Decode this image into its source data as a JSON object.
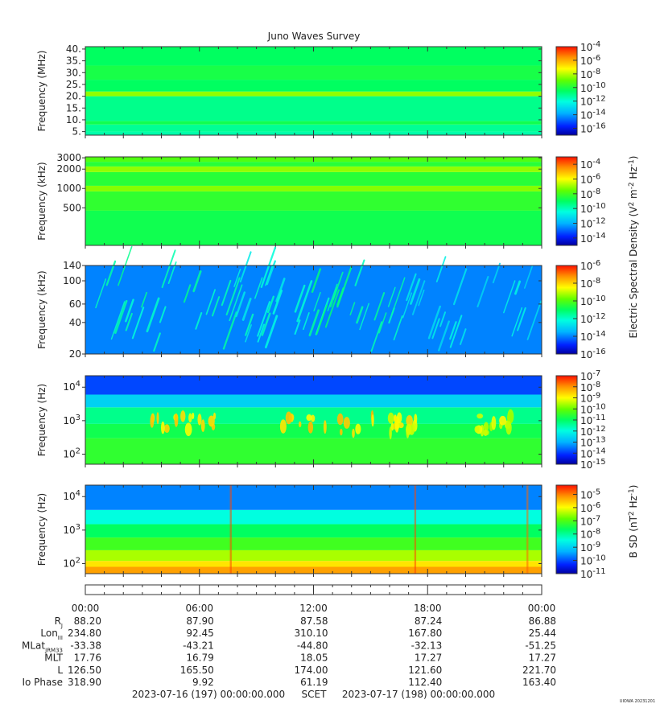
{
  "title": "Juno Waves Survey",
  "footer_stamp": "UIOWA 20231201",
  "chart_data": [
    {
      "type": "heatmap",
      "ylabel": "Frequency (MHz)",
      "yscale": "linear",
      "ylim": [
        3.5,
        41
      ],
      "yticks": [
        5,
        10,
        15,
        20,
        25,
        30,
        35,
        40
      ],
      "ytick_labels": [
        "5.",
        "10.",
        "15.",
        "20.",
        "25.",
        "30.",
        "35.",
        "40."
      ],
      "colorbar": {
        "scale": "log",
        "min_exp": -17,
        "max_exp": -4,
        "tick_exps": [
          -4,
          -6,
          -8,
          -10,
          -12,
          -14,
          -16
        ],
        "title": ""
      },
      "rows": [
        {
          "fmin": 3.5,
          "fmax": 5.0,
          "level": 0.43
        },
        {
          "fmin": 5.0,
          "fmax": 8.0,
          "level": 0.45
        },
        {
          "fmin": 8.0,
          "fmax": 9.5,
          "level": 0.52
        },
        {
          "fmin": 9.5,
          "fmax": 20.0,
          "level": 0.46
        },
        {
          "fmin": 20.0,
          "fmax": 22.0,
          "level": 0.66
        },
        {
          "fmin": 22.0,
          "fmax": 27.0,
          "level": 0.5
        },
        {
          "fmin": 27.0,
          "fmax": 33.0,
          "level": 0.53
        },
        {
          "fmin": 33.0,
          "fmax": 41.0,
          "level": 0.5
        }
      ],
      "features": []
    },
    {
      "type": "heatmap",
      "ylabel": "Frequency (kHz)",
      "yscale": "log",
      "ylim": [
        130,
        3100
      ],
      "yticks": [
        500,
        1000,
        2000,
        3000
      ],
      "ytick_labels": [
        "500",
        "1000",
        "2000",
        "3000"
      ],
      "colorbar": {
        "scale": "log",
        "min_exp": -15,
        "max_exp": -3,
        "tick_exps": [
          -4,
          -6,
          -8,
          -10,
          -12,
          -14
        ],
        "title": "Electric Spectral Density (V2 m-2 Hz-1)"
      },
      "rows": [
        {
          "fmin": 130,
          "fmax": 450,
          "level": 0.52
        },
        {
          "fmin": 450,
          "fmax": 900,
          "level": 0.56
        },
        {
          "fmin": 900,
          "fmax": 1100,
          "level": 0.65
        },
        {
          "fmin": 1100,
          "fmax": 1800,
          "level": 0.55
        },
        {
          "fmin": 1800,
          "fmax": 2200,
          "level": 0.66
        },
        {
          "fmin": 2200,
          "fmax": 2600,
          "level": 0.55
        },
        {
          "fmin": 2600,
          "fmax": 3100,
          "level": 0.6
        }
      ],
      "features": []
    },
    {
      "type": "heatmap",
      "ylabel": "Frequency (kHz)",
      "yscale": "log",
      "ylim": [
        20,
        140
      ],
      "yticks": [
        20,
        40,
        60,
        100,
        140
      ],
      "ytick_labels": [
        "20",
        "40",
        "60",
        "100",
        "140"
      ],
      "colorbar": {
        "scale": "log",
        "min_exp": -16,
        "max_exp": -6,
        "tick_exps": [
          -6,
          -8,
          -10,
          -12,
          -14,
          -16
        ],
        "title": ""
      },
      "rows": [
        {
          "fmin": 20,
          "fmax": 140,
          "level": 0.2
        }
      ],
      "features": [
        {
          "shape": "streaks",
          "t0": 0.5,
          "t1": 7.5,
          "level": 0.38
        },
        {
          "shape": "streaks",
          "t0": 7.5,
          "t1": 11.5,
          "level": 0.34
        },
        {
          "shape": "streaks",
          "t0": 11.5,
          "t1": 16.5,
          "level": 0.4
        },
        {
          "shape": "streaks",
          "t0": 16.5,
          "t1": 23.5,
          "level": 0.3
        }
      ]
    },
    {
      "type": "heatmap",
      "ylabel": "Frequency (Hz)",
      "yscale": "log",
      "ylim": [
        50,
        22000
      ],
      "yticks": [
        100,
        1000,
        10000
      ],
      "ytick_labels": [
        "10^2",
        "10^3",
        "10^4"
      ],
      "colorbar": {
        "scale": "log",
        "min_exp": -15,
        "max_exp": -7,
        "tick_exps": [
          -7,
          -8,
          -9,
          -10,
          -11,
          -12,
          -13,
          -14,
          -15
        ],
        "title": ""
      },
      "rows": [
        {
          "fmin": 50,
          "fmax": 300,
          "level": 0.56
        },
        {
          "fmin": 300,
          "fmax": 800,
          "level": 0.52
        },
        {
          "fmin": 800,
          "fmax": 2500,
          "level": 0.46
        },
        {
          "fmin": 2500,
          "fmax": 6000,
          "level": 0.3
        },
        {
          "fmin": 6000,
          "fmax": 22000,
          "level": 0.14
        }
      ],
      "features": [
        {
          "shape": "blobs",
          "t0": 3.5,
          "t1": 6.8,
          "level": 0.72
        },
        {
          "shape": "blobs",
          "t0": 10.0,
          "t1": 15.2,
          "level": 0.74
        },
        {
          "shape": "blobs",
          "t0": 15.8,
          "t1": 17.5,
          "level": 0.7
        },
        {
          "shape": "blobs",
          "t0": 20.5,
          "t1": 22.5,
          "level": 0.66
        }
      ]
    },
    {
      "type": "heatmap",
      "ylabel": "Frequency (Hz)",
      "yscale": "log",
      "ylim": [
        50,
        22000
      ],
      "yticks": [
        100,
        1000,
        10000
      ],
      "ytick_labels": [
        "10^2",
        "10^3",
        "10^4"
      ],
      "colorbar": {
        "scale": "log",
        "min_exp": -11,
        "max_exp": -4.3,
        "tick_exps": [
          -5,
          -6,
          -7,
          -8,
          -9,
          -10,
          -11
        ],
        "title": "B SD (nT2 Hz-1)"
      },
      "rows": [
        {
          "fmin": 50,
          "fmax": 80,
          "level": 0.86
        },
        {
          "fmin": 80,
          "fmax": 120,
          "level": 0.78
        },
        {
          "fmin": 120,
          "fmax": 250,
          "level": 0.68
        },
        {
          "fmin": 250,
          "fmax": 600,
          "level": 0.58
        },
        {
          "fmin": 600,
          "fmax": 1500,
          "level": 0.5
        },
        {
          "fmin": 1500,
          "fmax": 4000,
          "level": 0.38
        },
        {
          "fmin": 4000,
          "fmax": 22000,
          "level": 0.2
        }
      ],
      "features": [
        {
          "shape": "spike",
          "t0": 7.6,
          "t1": 7.7,
          "level": 0.95
        },
        {
          "shape": "spike",
          "t0": 17.3,
          "t1": 17.4,
          "level": 0.95
        },
        {
          "shape": "spike",
          "t0": 23.2,
          "t1": 23.3,
          "level": 0.92
        }
      ]
    }
  ],
  "xaxis": {
    "xlim_hours": [
      0,
      24
    ],
    "major_hours": [
      0,
      6,
      12,
      18,
      24
    ],
    "tick_labels": [
      "00:00",
      "06:00",
      "12:00",
      "18:00",
      "00:00"
    ]
  },
  "ephemeris": [
    {
      "label": "R",
      "sub": "J",
      "values": [
        "88.20",
        "87.90",
        "87.58",
        "87.24",
        "86.88"
      ]
    },
    {
      "label": "Lon",
      "sub": "III",
      "values": [
        "234.80",
        "92.45",
        "310.10",
        "167.80",
        "25.44"
      ]
    },
    {
      "label": "MLat",
      "sub": "JRM33",
      "values": [
        "-33.38",
        "-43.21",
        "-44.80",
        "-32.13",
        "-51.25"
      ]
    },
    {
      "label": "MLT",
      "sub": "",
      "values": [
        "17.76",
        "16.79",
        "18.05",
        "17.27",
        "17.27"
      ]
    },
    {
      "label": "L",
      "sub": "",
      "values": [
        "126.50",
        "165.50",
        "174.00",
        "121.60",
        "221.70"
      ]
    },
    {
      "label": "Io Phase",
      "sub": "",
      "values": [
        "318.90",
        "9.92",
        "61.19",
        "112.40",
        "163.40"
      ]
    }
  ],
  "time_range": {
    "start": "2023-07-16 (197) 00:00:00.000",
    "scet": "SCET",
    "end": "2023-07-17 (198) 00:00:00.000"
  }
}
